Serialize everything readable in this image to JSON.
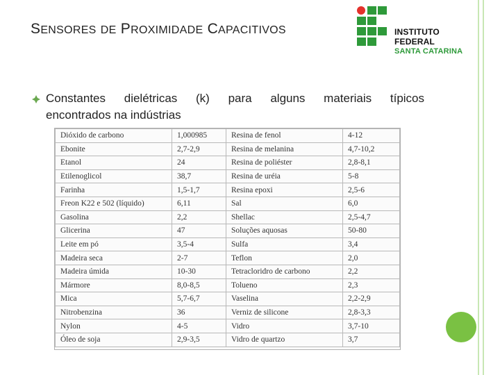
{
  "title": {
    "part1_cap": "S",
    "part1_rest": "ENSORES",
    "part2_cap": "D",
    "part2_rest": "E",
    "part3_cap": "P",
    "part3_rest": "ROXIMIDADE",
    "part4_cap": "C",
    "part4_rest": "APACITIVOS"
  },
  "logo": {
    "line1": "INSTITUTO FEDERAL",
    "line2": "SANTA CATARINA",
    "green": "#2e9a3a",
    "red": "#e4312b"
  },
  "bullet": {
    "line1": "Constantes dielétricas (k) para alguns materiais típicos",
    "line2": "encontrados na indústrias"
  },
  "table": {
    "rows": [
      [
        "Dióxido de carbono",
        "1,000985",
        "Resina de fenol",
        "4-12"
      ],
      [
        "Ebonite",
        "2,7-2,9",
        "Resina de melanina",
        "4,7-10,2"
      ],
      [
        "Etanol",
        "24",
        "Resina de poliéster",
        "2,8-8,1"
      ],
      [
        "Etilenoglicol",
        "38,7",
        "Resina de uréia",
        "5-8"
      ],
      [
        "Farinha",
        "1,5-1,7",
        "Resina epoxi",
        "2,5-6"
      ],
      [
        "Freon K22 e 502 (líquido)",
        "6,11",
        "Sal",
        "6,0"
      ],
      [
        "Gasolina",
        "2,2",
        "Shellac",
        "2,5-4,7"
      ],
      [
        "Glicerina",
        "47",
        "Soluções aquosas",
        "50-80"
      ],
      [
        "Leite em pó",
        "3,5-4",
        "Sulfa",
        "3,4"
      ],
      [
        "Madeira seca",
        "2-7",
        "Teflon",
        "2,0"
      ],
      [
        "Madeira úmida",
        "10-30",
        "Tetracloridro de carbono",
        "2,2"
      ],
      [
        "Mármore",
        "8,0-8,5",
        "Tolueno",
        "2,3"
      ],
      [
        "Mica",
        "5,7-6,7",
        "Vaselina",
        "2,2-2,9"
      ],
      [
        "Nitrobenzina",
        "36",
        "Verniz de silicone",
        "2,8-3,3"
      ],
      [
        "Nylon",
        "4-5",
        "Vidro",
        "3,7-10"
      ],
      [
        "Óleo de soja",
        "2,9-3,5",
        "Vidro de quartzo",
        "3,7"
      ]
    ]
  },
  "colors": {
    "accent_green": "#7ac143"
  }
}
